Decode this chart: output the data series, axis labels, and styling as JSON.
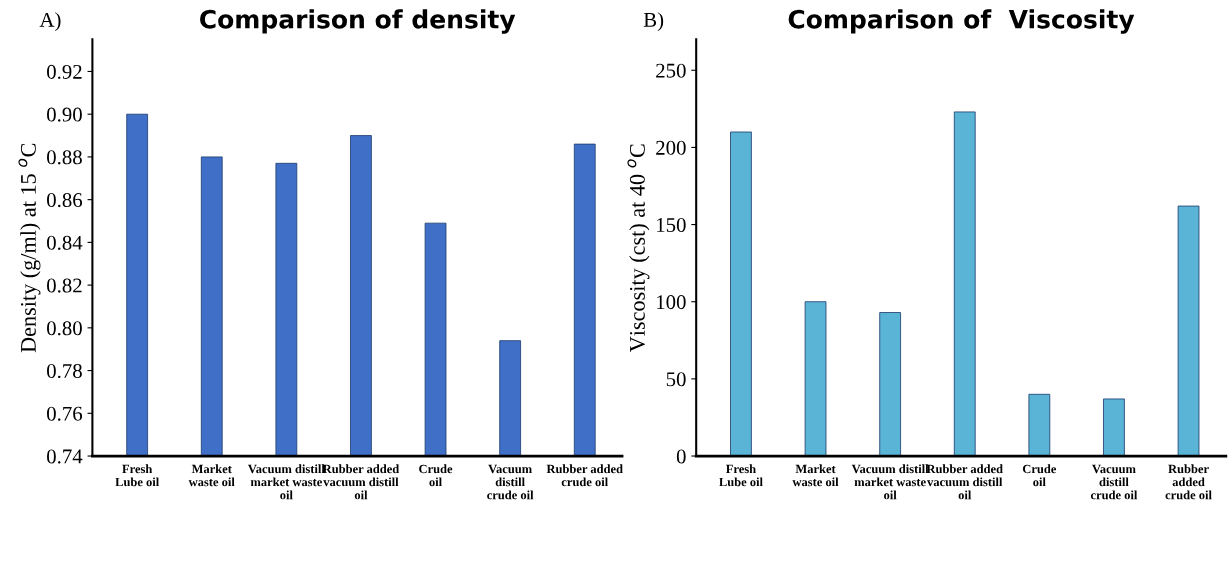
{
  "chart_data": [
    {
      "type": "bar",
      "title": "Comparison of density",
      "ylabel": "Density (g/ml) at 15 $^{o}$C",
      "annotations": [
        "A)"
      ],
      "categories": [
        "Fresh\nLube oil",
        "Market\nwaste oil",
        "Vacuum distill\nmarket waste\noil",
        "Rubber added\nvacuum distill\noil",
        "Crude\noil",
        "Vacuum\ndistill\ncrude oil",
        "Rubber added\ncrude oil"
      ],
      "values": [
        0.9,
        0.88,
        0.877,
        0.89,
        0.849,
        0.794,
        0.886
      ],
      "color": "#3f6fc6",
      "ylim": [
        0.74,
        0.935
      ],
      "yticks": [
        0.74,
        0.76,
        0.78,
        {
          "value": 0.8,
          "label": "0.80"
        },
        0.82,
        0.84,
        0.86,
        0.88,
        {
          "value": 0.9,
          "label": "0.90"
        },
        0.92
      ],
      "grid": false,
      "legend": false
    },
    {
      "type": "bar",
      "title": "Comparison of  Viscosity",
      "ylabel": "Viscosity (cst) at 40 $^{o}$C",
      "annotations": [
        "B)"
      ],
      "categories": [
        "Fresh\nLube oil",
        "Market\nwaste oil",
        "Vacuum distill\nmarket waste\noil",
        "Rubber added\nvacuum distill\noil",
        "Crude\noil",
        "Vacuum\ndistill\ncrude oil",
        "Rubber\nadded\ncrude oil"
      ],
      "values": [
        210,
        100,
        93,
        223,
        40,
        37,
        162
      ],
      "color": "#5ab4d6",
      "ylim": [
        0,
        270
      ],
      "yticks": [
        0,
        50,
        100,
        150,
        200,
        250
      ],
      "grid": false,
      "legend": false
    }
  ]
}
